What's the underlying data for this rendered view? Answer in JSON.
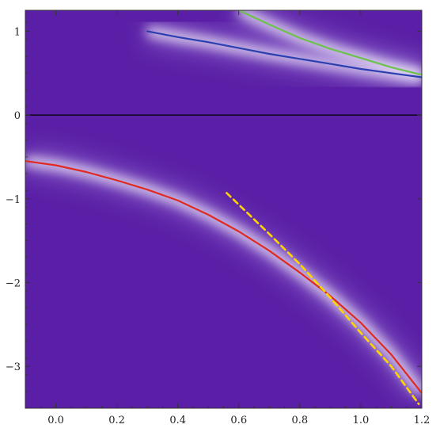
{
  "chart_data": {
    "type": "line",
    "title": "",
    "xlabel": "",
    "ylabel": "",
    "xlim": [
      -0.1,
      1.2
    ],
    "ylim": [
      -3.5,
      1.25
    ],
    "x_ticks": [
      0.0,
      0.2,
      0.4,
      0.6,
      0.8,
      1.0,
      1.2
    ],
    "x_tick_labels": [
      "0.0",
      "0.2",
      "0.4",
      "0.6",
      "0.8",
      "1.0",
      "1.2"
    ],
    "y_ticks": [
      1,
      0,
      -1,
      -2,
      -3
    ],
    "y_tick_labels": [
      "1",
      "0",
      "−1",
      "−2",
      "−3"
    ],
    "grid": false,
    "background": "spectral density heatmap (purple with bright bands along curves)",
    "colors": {
      "background": "#5a1fa6",
      "band_highlight": "#ffffff",
      "zero_line": "#000000"
    },
    "reference_lines": [
      {
        "orientation": "horizontal",
        "y": 0,
        "color": "#000000"
      }
    ],
    "series": [
      {
        "color": "#e02a20",
        "style": "solid",
        "x": [
          -0.1,
          0.0,
          0.1,
          0.2,
          0.3,
          0.4,
          0.5,
          0.6,
          0.7,
          0.8,
          0.9,
          1.0,
          1.1,
          1.2
        ],
        "y": [
          -0.55,
          -0.6,
          -0.68,
          -0.78,
          -0.89,
          -1.02,
          -1.19,
          -1.39,
          -1.62,
          -1.88,
          -2.16,
          -2.48,
          -2.86,
          -3.32
        ]
      },
      {
        "color": "#ffd400",
        "style": "dashed",
        "x": [
          0.56,
          0.7,
          0.8,
          0.9,
          1.0,
          1.1,
          1.19
        ],
        "y": [
          -0.93,
          -1.42,
          -1.78,
          -2.18,
          -2.6,
          -3.0,
          -3.45
        ]
      },
      {
        "color": "#2a3fb0",
        "style": "solid",
        "x": [
          0.3,
          0.4,
          0.5,
          0.6,
          0.7,
          0.8,
          0.9,
          1.0,
          1.1,
          1.2
        ],
        "y": [
          1.0,
          0.93,
          0.87,
          0.8,
          0.73,
          0.67,
          0.61,
          0.55,
          0.5,
          0.45
        ]
      },
      {
        "color": "#6cc24a",
        "style": "solid",
        "x": [
          0.6,
          0.7,
          0.8,
          0.9,
          1.0,
          1.1,
          1.2
        ],
        "y": [
          1.25,
          1.08,
          0.92,
          0.79,
          0.68,
          0.57,
          0.48
        ]
      }
    ]
  }
}
